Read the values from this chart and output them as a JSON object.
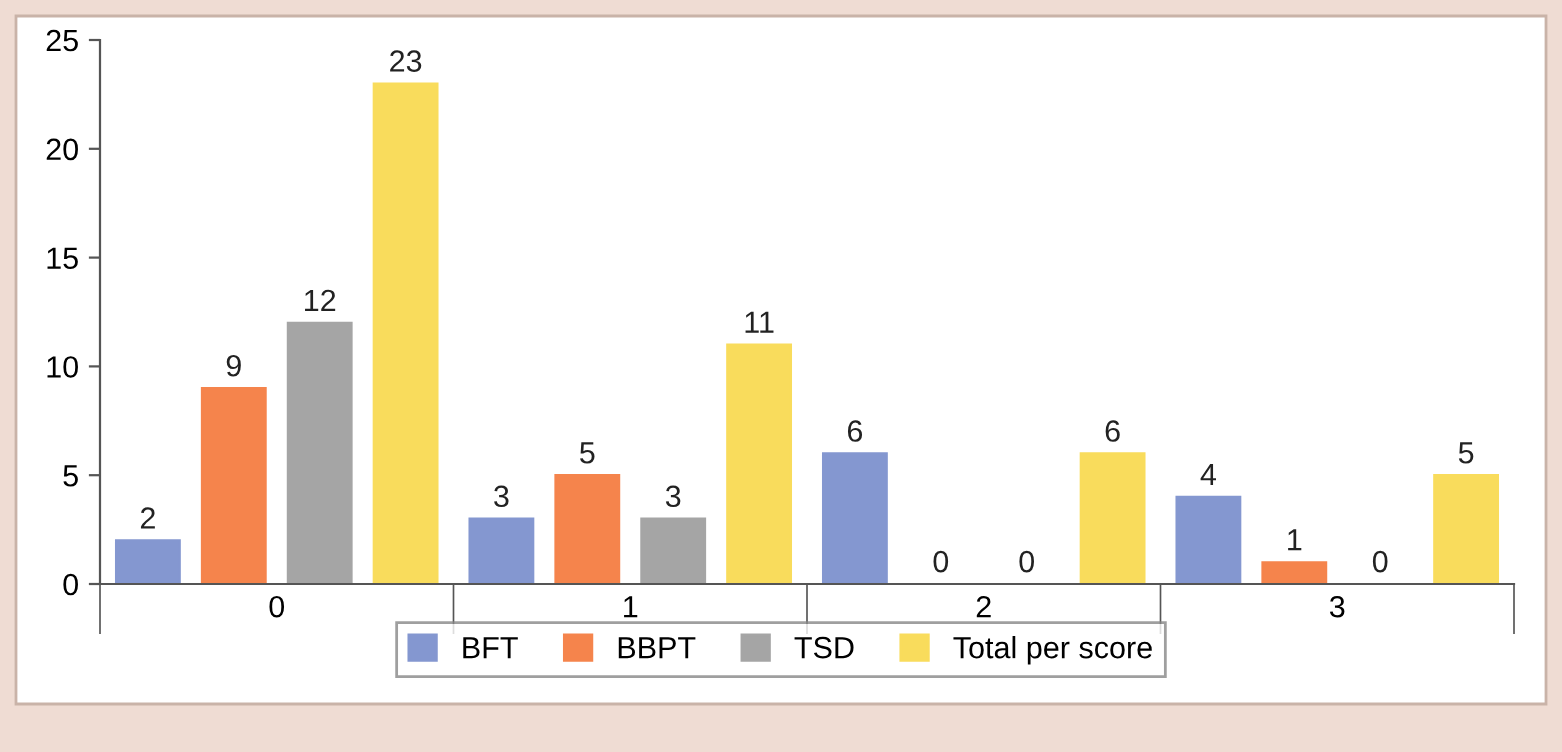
{
  "chart_data": {
    "type": "bar",
    "categories": [
      "0",
      "1",
      "2",
      "3"
    ],
    "series": [
      {
        "name": "BFT",
        "color": "#8497d0",
        "values": [
          2,
          3,
          6,
          4
        ]
      },
      {
        "name": "BBPT",
        "color": "#f5844c",
        "values": [
          9,
          5,
          0,
          1
        ]
      },
      {
        "name": "TSD",
        "color": "#a5a5a5",
        "values": [
          12,
          3,
          0,
          0
        ]
      },
      {
        "name": "Total per score",
        "color": "#f9dc5c",
        "values": [
          23,
          11,
          6,
          5
        ]
      }
    ],
    "ylim": [
      0,
      25
    ],
    "yticks": [
      0,
      5,
      10,
      15,
      20,
      25
    ],
    "grid": false,
    "legend": "bottom",
    "data_labels": true
  }
}
